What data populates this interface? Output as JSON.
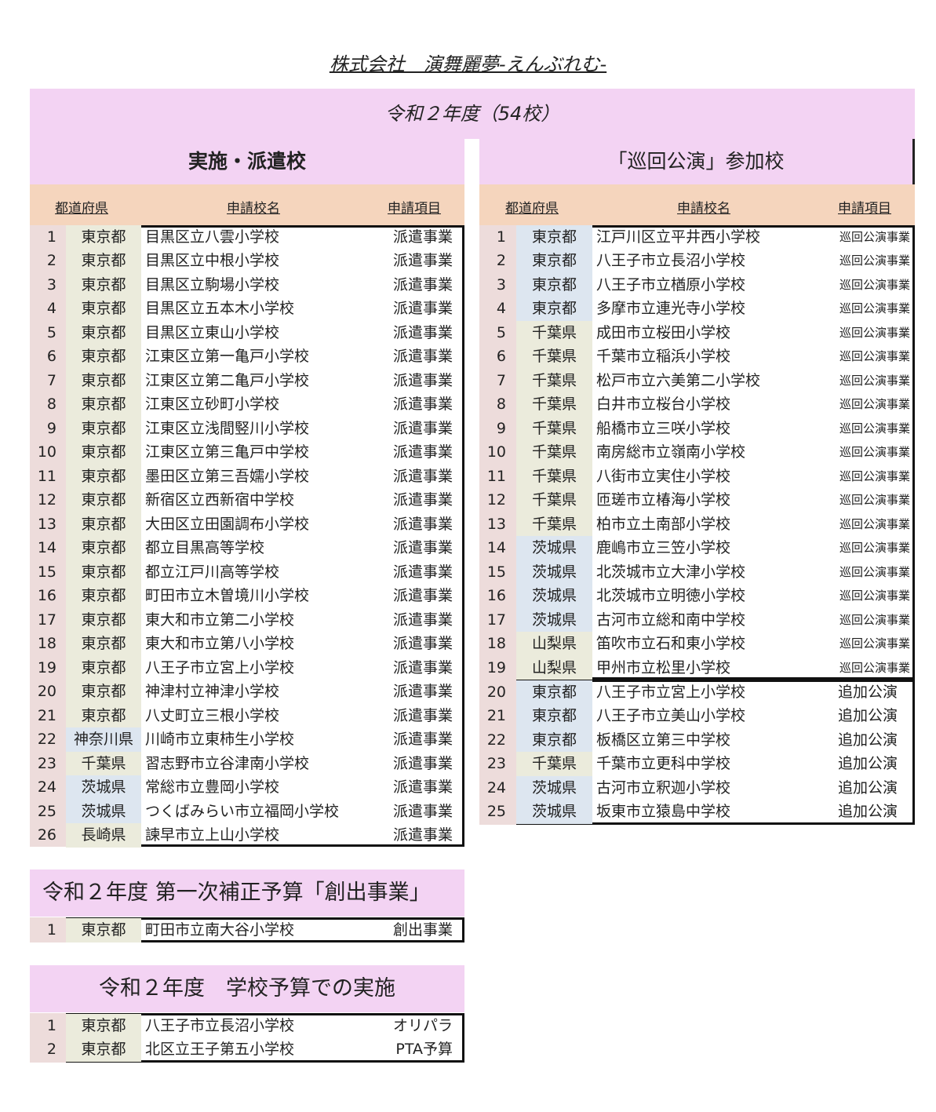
{
  "company": "株式会社　演舞麗夢-えんぶれむ-",
  "year_title": "令和２年度（54校）",
  "colors": {
    "pink": "#f3d3f3",
    "peach": "#f5d5bd",
    "number_bg": "#eddcdb",
    "beige": "#ebebdc",
    "blue": "#dde6f0"
  },
  "left": {
    "title": "実施・派遣校",
    "headers": [
      "都道府県",
      "申請校名",
      "申請項目"
    ],
    "rows": [
      [
        "1",
        "東京都",
        "目黒区立八雲小学校",
        "派遣事業",
        "beige"
      ],
      [
        "2",
        "東京都",
        "目黒区立中根小学校",
        "派遣事業",
        "beige"
      ],
      [
        "3",
        "東京都",
        "目黒区立駒場小学校",
        "派遣事業",
        "beige"
      ],
      [
        "4",
        "東京都",
        "目黒区立五本木小学校",
        "派遣事業",
        "beige"
      ],
      [
        "5",
        "東京都",
        "目黒区立東山小学校",
        "派遣事業",
        "beige"
      ],
      [
        "6",
        "東京都",
        "江東区立第一亀戸小学校",
        "派遣事業",
        "beige"
      ],
      [
        "7",
        "東京都",
        "江東区立第二亀戸小学校",
        "派遣事業",
        "beige"
      ],
      [
        "8",
        "東京都",
        "江東区立砂町小学校",
        "派遣事業",
        "beige"
      ],
      [
        "9",
        "東京都",
        "江東区立浅間竪川小学校",
        "派遣事業",
        "beige"
      ],
      [
        "10",
        "東京都",
        "江東区立第三亀戸中学校",
        "派遣事業",
        "beige"
      ],
      [
        "11",
        "東京都",
        "墨田区立第三吾嬬小学校",
        "派遣事業",
        "beige"
      ],
      [
        "12",
        "東京都",
        "新宿区立西新宿中学校",
        "派遣事業",
        "beige"
      ],
      [
        "13",
        "東京都",
        "大田区立田園調布小学校",
        "派遣事業",
        "beige"
      ],
      [
        "14",
        "東京都",
        "都立目黒高等学校",
        "派遣事業",
        "beige"
      ],
      [
        "15",
        "東京都",
        "都立江戸川高等学校",
        "派遣事業",
        "beige"
      ],
      [
        "16",
        "東京都",
        "町田市立木曽境川小学校",
        "派遣事業",
        "beige"
      ],
      [
        "17",
        "東京都",
        "東大和市立第二小学校",
        "派遣事業",
        "beige"
      ],
      [
        "18",
        "東京都",
        "東大和市立第八小学校",
        "派遣事業",
        "beige"
      ],
      [
        "19",
        "東京都",
        "八王子市立宮上小学校",
        "派遣事業",
        "beige"
      ],
      [
        "20",
        "東京都",
        "神津村立神津小学校",
        "派遣事業",
        "beige"
      ],
      [
        "21",
        "東京都",
        "八丈町立三根小学校",
        "派遣事業",
        "beige"
      ],
      [
        "22",
        "神奈川県",
        "川崎市立東柿生小学校",
        "派遣事業",
        "blue"
      ],
      [
        "23",
        "千葉県",
        "習志野市立谷津南小学校",
        "派遣事業",
        "beige"
      ],
      [
        "24",
        "茨城県",
        "常総市立豊岡小学校",
        "派遣事業",
        "blue"
      ],
      [
        "25",
        "茨城県",
        "つくばみらい市立福岡小学校",
        "派遣事業",
        "blue"
      ],
      [
        "26",
        "長崎県",
        "諫早市立上山小学校",
        "派遣事業",
        "beige"
      ]
    ]
  },
  "right": {
    "title": "「巡回公演」参加校",
    "headers": [
      "都道府県",
      "申請校名",
      "申請項目"
    ],
    "rows": [
      [
        "1",
        "東京都",
        "江戸川区立平井西小学校",
        "巡回公演事業",
        "blue"
      ],
      [
        "2",
        "東京都",
        "八王子市立長沼小学校",
        "巡回公演事業",
        "blue"
      ],
      [
        "3",
        "東京都",
        "八王子市立楢原小学校",
        "巡回公演事業",
        "blue"
      ],
      [
        "4",
        "東京都",
        "多摩市立連光寺小学校",
        "巡回公演事業",
        "blue"
      ],
      [
        "5",
        "千葉県",
        "成田市立桜田小学校",
        "巡回公演事業",
        "beige"
      ],
      [
        "6",
        "千葉県",
        "千葉市立稲浜小学校",
        "巡回公演事業",
        "beige"
      ],
      [
        "7",
        "千葉県",
        "松戸市立六美第二小学校",
        "巡回公演事業",
        "beige"
      ],
      [
        "8",
        "千葉県",
        "白井市立桜台小学校",
        "巡回公演事業",
        "beige"
      ],
      [
        "9",
        "千葉県",
        "船橋市立三咲小学校",
        "巡回公演事業",
        "beige"
      ],
      [
        "10",
        "千葉県",
        "南房総市立嶺南小学校",
        "巡回公演事業",
        "beige"
      ],
      [
        "11",
        "千葉県",
        "八街市立実住小学校",
        "巡回公演事業",
        "beige"
      ],
      [
        "12",
        "千葉県",
        "匝瑳市立椿海小学校",
        "巡回公演事業",
        "beige"
      ],
      [
        "13",
        "千葉県",
        "柏市立土南部小学校",
        "巡回公演事業",
        "beige"
      ],
      [
        "14",
        "茨城県",
        "鹿嶋市立三笠小学校",
        "巡回公演事業",
        "blue"
      ],
      [
        "15",
        "茨城県",
        "北茨城市立大津小学校",
        "巡回公演事業",
        "blue"
      ],
      [
        "16",
        "茨城県",
        "北茨城市立明徳小学校",
        "巡回公演事業",
        "blue"
      ],
      [
        "17",
        "茨城県",
        "古河市立総和南中学校",
        "巡回公演事業",
        "blue"
      ],
      [
        "18",
        "山梨県",
        "笛吹市立石和東小学校",
        "巡回公演事業",
        "beige"
      ],
      [
        "19",
        "山梨県",
        "甲州市立松里小学校",
        "巡回公演事業",
        "beige"
      ]
    ],
    "additional_rows": [
      [
        "20",
        "東京都",
        "八王子市立宮上小学校",
        "追加公演",
        "blue"
      ],
      [
        "21",
        "東京都",
        "八王子市立美山小学校",
        "追加公演",
        "blue"
      ],
      [
        "22",
        "東京都",
        "板橋区立第三中学校",
        "追加公演",
        "blue"
      ],
      [
        "23",
        "千葉県",
        "千葉市立更科中学校",
        "追加公演",
        "beige"
      ],
      [
        "24",
        "茨城県",
        "古河市立釈迦小学校",
        "追加公演",
        "blue"
      ],
      [
        "25",
        "茨城県",
        "坂東市立猿島中学校",
        "追加公演",
        "blue"
      ]
    ]
  },
  "supplementary": {
    "title": "令和２年度 第一次補正予算「創出事業」",
    "rows": [
      [
        "1",
        "東京都",
        "町田市立南大谷小学校",
        "創出事業",
        "beige"
      ]
    ]
  },
  "school_budget": {
    "title": "令和２年度　学校予算での実施",
    "rows": [
      [
        "1",
        "東京都",
        "八王子市立長沼小学校",
        "オリパラ",
        "beige"
      ],
      [
        "2",
        "東京都",
        "北区立王子第五小学校",
        "PTA予算",
        "beige"
      ]
    ]
  }
}
